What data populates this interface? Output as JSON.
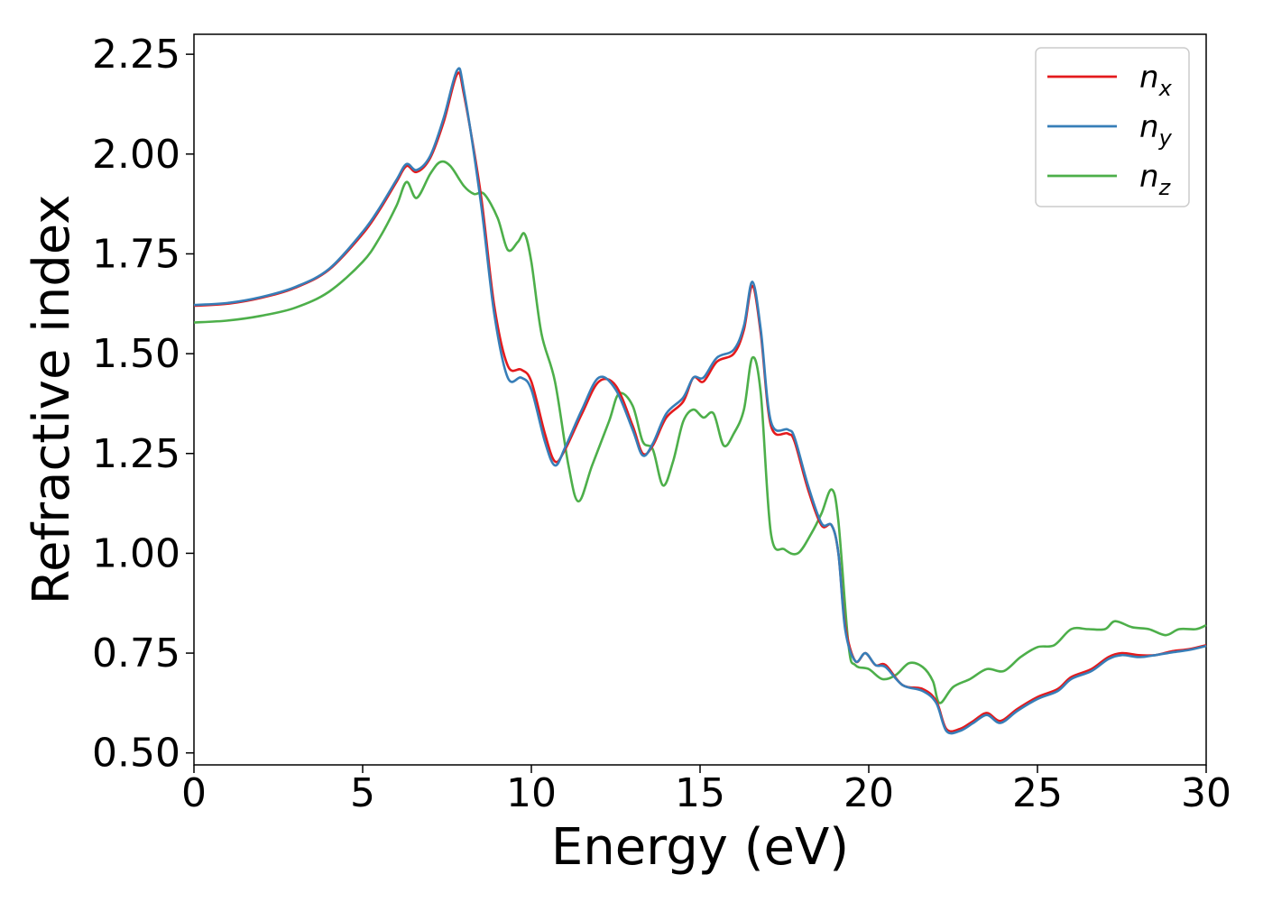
{
  "chart_data": {
    "type": "line",
    "title": "",
    "xlabel": "Energy (eV)",
    "ylabel": "Refractive index",
    "xlim": [
      0,
      30
    ],
    "ylim": [
      0.47,
      2.3
    ],
    "xticks": [
      0,
      5,
      10,
      15,
      20,
      25,
      30
    ],
    "xtick_labels": [
      "0",
      "5",
      "10",
      "15",
      "20",
      "25",
      "30"
    ],
    "yticks": [
      0.5,
      0.75,
      1.0,
      1.25,
      1.5,
      1.75,
      2.0,
      2.25
    ],
    "ytick_labels": [
      "0.50",
      "0.75",
      "1.00",
      "1.25",
      "1.50",
      "1.75",
      "2.00",
      "2.25"
    ],
    "grid": false,
    "legend_position": "top-right",
    "series": [
      {
        "name": "n",
        "subscript": "x",
        "color": "#e41a1c",
        "points": [
          [
            0,
            1.62
          ],
          [
            1,
            1.625
          ],
          [
            2,
            1.64
          ],
          [
            3,
            1.665
          ],
          [
            4,
            1.71
          ],
          [
            5,
            1.8
          ],
          [
            5.5,
            1.86
          ],
          [
            6,
            1.93
          ],
          [
            6.3,
            1.97
          ],
          [
            6.6,
            1.955
          ],
          [
            7,
            1.99
          ],
          [
            7.4,
            2.08
          ],
          [
            7.8,
            2.2
          ],
          [
            8,
            2.15
          ],
          [
            8.5,
            1.9
          ],
          [
            8.9,
            1.62
          ],
          [
            9.3,
            1.47
          ],
          [
            9.7,
            1.46
          ],
          [
            10,
            1.43
          ],
          [
            10.4,
            1.3
          ],
          [
            10.7,
            1.23
          ],
          [
            11,
            1.26
          ],
          [
            11.5,
            1.35
          ],
          [
            12,
            1.43
          ],
          [
            12.5,
            1.42
          ],
          [
            13,
            1.32
          ],
          [
            13.3,
            1.25
          ],
          [
            13.6,
            1.27
          ],
          [
            14,
            1.34
          ],
          [
            14.5,
            1.38
          ],
          [
            14.8,
            1.44
          ],
          [
            15.1,
            1.43
          ],
          [
            15.5,
            1.48
          ],
          [
            16,
            1.5
          ],
          [
            16.3,
            1.56
          ],
          [
            16.55,
            1.67
          ],
          [
            16.8,
            1.55
          ],
          [
            17.1,
            1.32
          ],
          [
            17.6,
            1.3
          ],
          [
            17.8,
            1.28
          ],
          [
            18.2,
            1.16
          ],
          [
            18.6,
            1.07
          ],
          [
            18.9,
            1.07
          ],
          [
            19.1,
            1.0
          ],
          [
            19.3,
            0.82
          ],
          [
            19.6,
            0.73
          ],
          [
            19.9,
            0.75
          ],
          [
            20.2,
            0.72
          ],
          [
            20.5,
            0.72
          ],
          [
            21,
            0.67
          ],
          [
            21.6,
            0.66
          ],
          [
            22,
            0.63
          ],
          [
            22.3,
            0.56
          ],
          [
            22.7,
            0.56
          ],
          [
            23.1,
            0.58
          ],
          [
            23.5,
            0.6
          ],
          [
            23.9,
            0.58
          ],
          [
            24.4,
            0.61
          ],
          [
            25,
            0.64
          ],
          [
            25.6,
            0.66
          ],
          [
            26,
            0.69
          ],
          [
            26.6,
            0.71
          ],
          [
            27.1,
            0.74
          ],
          [
            27.5,
            0.75
          ],
          [
            28,
            0.745
          ],
          [
            28.5,
            0.745
          ],
          [
            29,
            0.755
          ],
          [
            29.5,
            0.76
          ],
          [
            30,
            0.77
          ]
        ]
      },
      {
        "name": "n",
        "subscript": "y",
        "color": "#377eb8",
        "points": [
          [
            0,
            1.622
          ],
          [
            1,
            1.627
          ],
          [
            2,
            1.642
          ],
          [
            3,
            1.667
          ],
          [
            4,
            1.712
          ],
          [
            5,
            1.805
          ],
          [
            5.5,
            1.865
          ],
          [
            6,
            1.935
          ],
          [
            6.3,
            1.975
          ],
          [
            6.6,
            1.96
          ],
          [
            7,
            1.995
          ],
          [
            7.4,
            2.09
          ],
          [
            7.8,
            2.21
          ],
          [
            8,
            2.16
          ],
          [
            8.5,
            1.88
          ],
          [
            8.9,
            1.6
          ],
          [
            9.3,
            1.44
          ],
          [
            9.7,
            1.44
          ],
          [
            10,
            1.41
          ],
          [
            10.4,
            1.28
          ],
          [
            10.7,
            1.22
          ],
          [
            11,
            1.265
          ],
          [
            11.5,
            1.36
          ],
          [
            12,
            1.44
          ],
          [
            12.5,
            1.41
          ],
          [
            13,
            1.31
          ],
          [
            13.3,
            1.245
          ],
          [
            13.6,
            1.275
          ],
          [
            14,
            1.35
          ],
          [
            14.5,
            1.39
          ],
          [
            14.8,
            1.44
          ],
          [
            15.1,
            1.44
          ],
          [
            15.5,
            1.49
          ],
          [
            16,
            1.51
          ],
          [
            16.3,
            1.57
          ],
          [
            16.55,
            1.68
          ],
          [
            16.8,
            1.56
          ],
          [
            17.1,
            1.33
          ],
          [
            17.6,
            1.31
          ],
          [
            17.8,
            1.29
          ],
          [
            18.2,
            1.17
          ],
          [
            18.6,
            1.075
          ],
          [
            18.9,
            1.07
          ],
          [
            19.1,
            1.0
          ],
          [
            19.3,
            0.81
          ],
          [
            19.6,
            0.73
          ],
          [
            19.9,
            0.75
          ],
          [
            20.2,
            0.72
          ],
          [
            20.5,
            0.715
          ],
          [
            21,
            0.67
          ],
          [
            21.6,
            0.655
          ],
          [
            22,
            0.625
          ],
          [
            22.3,
            0.555
          ],
          [
            22.7,
            0.555
          ],
          [
            23.1,
            0.575
          ],
          [
            23.5,
            0.595
          ],
          [
            23.9,
            0.575
          ],
          [
            24.4,
            0.605
          ],
          [
            25,
            0.635
          ],
          [
            25.6,
            0.655
          ],
          [
            26,
            0.685
          ],
          [
            26.6,
            0.705
          ],
          [
            27.1,
            0.735
          ],
          [
            27.5,
            0.745
          ],
          [
            28,
            0.74
          ],
          [
            28.5,
            0.745
          ],
          [
            29,
            0.752
          ],
          [
            29.5,
            0.758
          ],
          [
            30,
            0.768
          ]
        ]
      },
      {
        "name": "n",
        "subscript": "z",
        "color": "#4daf4a",
        "points": [
          [
            0,
            1.578
          ],
          [
            1,
            1.583
          ],
          [
            2,
            1.595
          ],
          [
            3,
            1.615
          ],
          [
            4,
            1.655
          ],
          [
            5,
            1.73
          ],
          [
            5.5,
            1.79
          ],
          [
            6,
            1.87
          ],
          [
            6.3,
            1.93
          ],
          [
            6.6,
            1.89
          ],
          [
            7,
            1.95
          ],
          [
            7.3,
            1.98
          ],
          [
            7.6,
            1.97
          ],
          [
            8,
            1.92
          ],
          [
            8.3,
            1.9
          ],
          [
            8.6,
            1.9
          ],
          [
            9,
            1.84
          ],
          [
            9.3,
            1.76
          ],
          [
            9.6,
            1.78
          ],
          [
            9.8,
            1.8
          ],
          [
            10,
            1.73
          ],
          [
            10.3,
            1.55
          ],
          [
            10.7,
            1.43
          ],
          [
            11.1,
            1.22
          ],
          [
            11.4,
            1.13
          ],
          [
            11.8,
            1.22
          ],
          [
            12.3,
            1.33
          ],
          [
            12.6,
            1.4
          ],
          [
            13,
            1.37
          ],
          [
            13.3,
            1.28
          ],
          [
            13.6,
            1.26
          ],
          [
            13.9,
            1.17
          ],
          [
            14.2,
            1.23
          ],
          [
            14.5,
            1.33
          ],
          [
            14.8,
            1.36
          ],
          [
            15.1,
            1.34
          ],
          [
            15.4,
            1.35
          ],
          [
            15.7,
            1.27
          ],
          [
            16,
            1.3
          ],
          [
            16.3,
            1.36
          ],
          [
            16.55,
            1.49
          ],
          [
            16.8,
            1.4
          ],
          [
            17.1,
            1.05
          ],
          [
            17.5,
            1.01
          ],
          [
            17.9,
            1.0
          ],
          [
            18.3,
            1.05
          ],
          [
            18.6,
            1.1
          ],
          [
            18.9,
            1.16
          ],
          [
            19.1,
            1.08
          ],
          [
            19.4,
            0.77
          ],
          [
            19.6,
            0.72
          ],
          [
            20,
            0.71
          ],
          [
            20.4,
            0.685
          ],
          [
            20.8,
            0.695
          ],
          [
            21.2,
            0.725
          ],
          [
            21.6,
            0.715
          ],
          [
            21.9,
            0.68
          ],
          [
            22.1,
            0.625
          ],
          [
            22.5,
            0.665
          ],
          [
            23,
            0.685
          ],
          [
            23.5,
            0.71
          ],
          [
            24,
            0.705
          ],
          [
            24.5,
            0.74
          ],
          [
            25,
            0.765
          ],
          [
            25.5,
            0.77
          ],
          [
            26,
            0.81
          ],
          [
            26.5,
            0.81
          ],
          [
            27,
            0.81
          ],
          [
            27.3,
            0.83
          ],
          [
            27.8,
            0.815
          ],
          [
            28.3,
            0.81
          ],
          [
            28.8,
            0.795
          ],
          [
            29.2,
            0.81
          ],
          [
            29.7,
            0.81
          ],
          [
            30,
            0.82
          ]
        ]
      }
    ]
  }
}
